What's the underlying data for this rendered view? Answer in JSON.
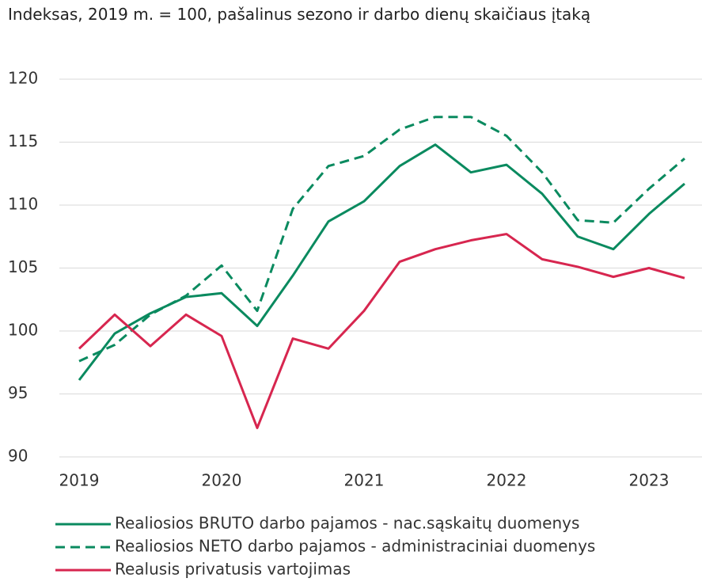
{
  "chart_data": {
    "type": "line",
    "title": "Indeksas, 2019 m. = 100, pašalinus sezono ir darbo dienų skaičiaus įtaką",
    "categories": [
      "2019",
      null,
      null,
      null,
      "2020",
      null,
      null,
      null,
      "2021",
      null,
      null,
      null,
      "2022",
      null,
      null,
      null,
      "2023",
      null
    ],
    "series": [
      {
        "name": "Realiosios BRUTO darbo pajamos - nac.sąskaitų duomenys",
        "color": "#0a8a5f",
        "style": "solid",
        "values": [
          96.1,
          99.8,
          101.4,
          102.7,
          103.0,
          100.4,
          104.4,
          108.7,
          110.3,
          113.1,
          114.8,
          112.6,
          113.2,
          110.9,
          107.5,
          106.5,
          109.3,
          111.7
        ]
      },
      {
        "name": "Realiosios NETO darbo pajamos - administraciniai duomenys",
        "color": "#0a8a5f",
        "style": "dashed",
        "values": [
          97.6,
          98.9,
          101.3,
          102.8,
          105.2,
          101.6,
          109.7,
          113.1,
          113.9,
          116.0,
          117.0,
          117.0,
          115.5,
          112.6,
          108.8,
          108.6,
          111.3,
          113.7
        ]
      },
      {
        "name": "Realusis privatusis vartojimas",
        "color": "#d7264f",
        "style": "solid",
        "values": [
          98.6,
          101.3,
          98.8,
          101.3,
          99.6,
          92.3,
          99.4,
          98.6,
          101.6,
          105.5,
          106.5,
          107.2,
          107.7,
          105.7,
          105.1,
          104.3,
          105.0,
          104.2
        ]
      }
    ],
    "ylim": [
      90,
      120
    ],
    "yticks": [
      90,
      95,
      100,
      105,
      110,
      115,
      120
    ],
    "grid": true
  }
}
